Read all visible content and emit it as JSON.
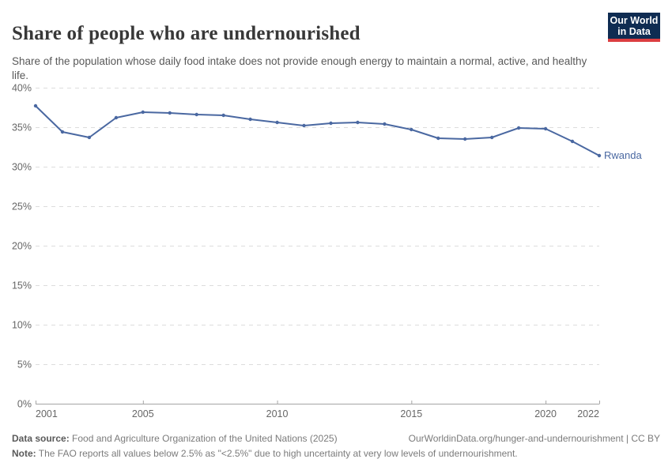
{
  "header": {
    "title": "Share of people who are undernourished",
    "subtitle": "Share of the population whose daily food intake does not provide enough energy to maintain a normal, active, and healthy life.",
    "logo": {
      "line1": "Our World",
      "line2": "in Data"
    }
  },
  "chart_data": {
    "type": "line",
    "title": "Share of people who are undernourished",
    "entity": "Rwanda",
    "series_label": "Rwanda",
    "x": [
      2001,
      2002,
      2003,
      2004,
      2005,
      2006,
      2007,
      2008,
      2009,
      2010,
      2011,
      2012,
      2013,
      2014,
      2015,
      2016,
      2017,
      2018,
      2019,
      2020,
      2021,
      2022
    ],
    "values": [
      37.7,
      34.4,
      33.7,
      36.2,
      36.9,
      36.8,
      36.6,
      36.5,
      36.0,
      35.6,
      35.2,
      35.5,
      35.6,
      35.4,
      34.7,
      33.6,
      33.5,
      33.7,
      34.9,
      34.8,
      33.2,
      31.4
    ],
    "unit": "%",
    "ylim": [
      0,
      40
    ],
    "yticks": [
      0,
      5,
      10,
      15,
      20,
      25,
      30,
      35,
      40
    ],
    "ytick_labels": [
      "0%",
      "5%",
      "10%",
      "15%",
      "20%",
      "25%",
      "30%",
      "35%",
      "40%"
    ],
    "xticks": [
      2001,
      2005,
      2010,
      2015,
      2020,
      2022
    ],
    "grid": true,
    "legend_position": "end-of-line",
    "line_color": "#4a68a1",
    "label_color": "#4a68a1",
    "grid_color": "#dcdcdc",
    "axis_color": "#a5a5a5",
    "tick_text_color": "#666666"
  },
  "footer": {
    "datasource_label": "Data source:",
    "datasource_text": " Food and Agriculture Organization of the United Nations (2025)",
    "license_link": "OurWorldinData.org/hunger-and-undernourishment | CC BY",
    "note_label": "Note:",
    "note_text": " The FAO reports all values below 2.5% as \"<2.5%\" due to high uncertainty at very low levels of undernourishment."
  }
}
